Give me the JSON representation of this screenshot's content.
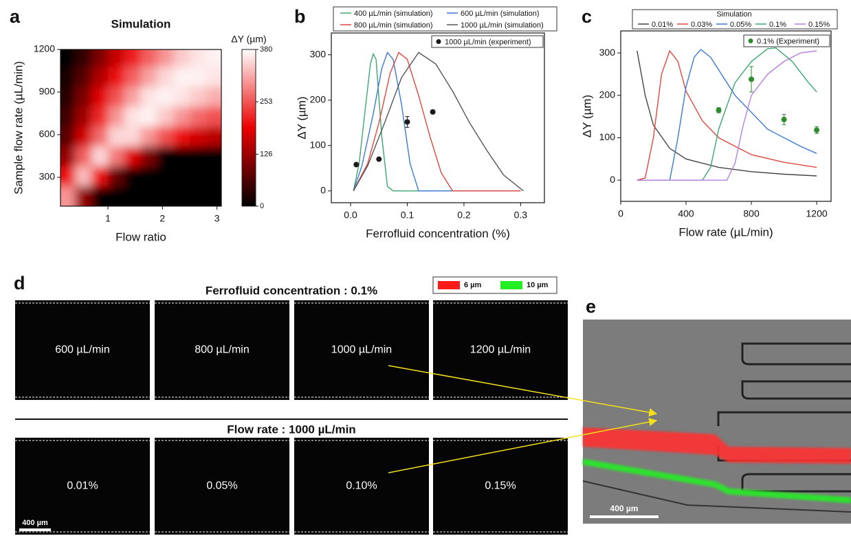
{
  "chart_data": [
    {
      "type": "heatmap",
      "title": "Simulation",
      "xlabel": "Flow ratio",
      "ylabel": "Sample flow rate (µL/min)",
      "colorbar_label": "ΔY (µm)",
      "colorbar_lim": [
        0,
        380
      ],
      "colorbar_ticks": [
        0,
        126,
        253,
        380
      ],
      "xlim": [
        0.13,
        3.08
      ],
      "ylim": [
        97,
        1200
      ],
      "xticks": [
        1,
        2,
        3
      ],
      "yticks": [
        300,
        600,
        900,
        1200
      ],
      "x": [
        0.25,
        0.55,
        0.85,
        1.15,
        1.45,
        1.75,
        2.05,
        2.35,
        2.65,
        2.95
      ],
      "y": [
        170,
        310,
        450,
        590,
        730,
        870,
        1010,
        1150
      ],
      "z": [
        [
          300,
          120,
          0,
          0,
          0,
          0,
          0,
          0,
          0,
          0
        ],
        [
          200,
          330,
          200,
          80,
          0,
          0,
          0,
          0,
          0,
          0
        ],
        [
          120,
          260,
          350,
          280,
          180,
          100,
          0,
          0,
          0,
          0
        ],
        [
          70,
          170,
          270,
          350,
          350,
          300,
          250,
          200,
          170,
          150
        ],
        [
          50,
          130,
          220,
          300,
          360,
          370,
          340,
          300,
          270,
          250
        ],
        [
          30,
          100,
          180,
          250,
          310,
          360,
          370,
          360,
          340,
          320
        ],
        [
          15,
          70,
          140,
          200,
          260,
          310,
          350,
          370,
          370,
          360
        ],
        [
          5,
          40,
          100,
          160,
          210,
          260,
          300,
          340,
          360,
          370
        ]
      ]
    },
    {
      "type": "line",
      "xlabel": "Ferrofluid concentration (%)",
      "ylabel": "ΔY (µm)",
      "xlim": [
        -0.034,
        0.342
      ],
      "ylim": [
        -26,
        348
      ],
      "xticks": [
        {
          "value": 0,
          "label": "0.0"
        },
        0.1,
        0.2,
        0.3
      ],
      "yticks": [
        0,
        100,
        200,
        300
      ],
      "series": [
        {
          "name": "400 µL/min (simulation)",
          "color": "#3aa76d",
          "x": [
            0.005,
            0.015,
            0.025,
            0.035,
            0.04,
            0.045,
            0.055,
            0.065,
            0.075,
            0.3
          ],
          "values": [
            0,
            60,
            170,
            280,
            302,
            290,
            120,
            10,
            0,
            0
          ]
        },
        {
          "name": "600 µL/min (simulation)",
          "color": "#3a78d8",
          "x": [
            0.005,
            0.02,
            0.04,
            0.055,
            0.065,
            0.075,
            0.09,
            0.105,
            0.12,
            0.3
          ],
          "values": [
            0,
            55,
            170,
            270,
            305,
            290,
            190,
            60,
            0,
            0
          ]
        },
        {
          "name": "800 µL/min (simulation)",
          "color": "#e0463e",
          "x": [
            0.005,
            0.03,
            0.05,
            0.07,
            0.085,
            0.1,
            0.12,
            0.14,
            0.16,
            0.18,
            0.3
          ],
          "values": [
            0,
            60,
            150,
            260,
            305,
            290,
            210,
            120,
            40,
            0,
            0
          ]
        },
        {
          "name": "1000 µL/min (simulation)",
          "color": "#555555",
          "x": [
            0.005,
            0.03,
            0.06,
            0.09,
            0.12,
            0.15,
            0.18,
            0.21,
            0.24,
            0.27,
            0.305
          ],
          "values": [
            0,
            55,
            150,
            250,
            305,
            280,
            220,
            150,
            90,
            35,
            0
          ]
        },
        {
          "name": "1000 µL/min (experiment)",
          "color": "#1a1a1a",
          "mode": "markers",
          "x": [
            0.01,
            0.05,
            0.1,
            0.145
          ],
          "values": [
            58,
            70,
            152,
            174
          ],
          "errors": [
            2,
            2,
            12,
            4
          ]
        }
      ]
    },
    {
      "type": "line",
      "xlabel": "Flow rate (µL/min)",
      "ylabel": "ΔY (µm)",
      "legend_title": "Simulation",
      "xlim": [
        0,
        1288
      ],
      "ylim": [
        -50,
        352
      ],
      "xticks": [
        0,
        400,
        800,
        1200
      ],
      "yticks": [
        0,
        100,
        200,
        300
      ],
      "series": [
        {
          "name": "0.01%",
          "color": "#444444",
          "x": [
            100,
            150,
            200,
            300,
            400,
            600,
            800,
            1000,
            1200
          ],
          "values": [
            305,
            200,
            130,
            75,
            50,
            30,
            20,
            14,
            10
          ]
        },
        {
          "name": "0.03%",
          "color": "#e0463e",
          "x": [
            100,
            150,
            200,
            250,
            300,
            350,
            400,
            500,
            600,
            800,
            1000,
            1200
          ],
          "values": [
            0,
            5,
            100,
            250,
            305,
            280,
            210,
            140,
            100,
            60,
            42,
            30
          ]
        },
        {
          "name": "0.05%",
          "color": "#3a78d8",
          "x": [
            100,
            300,
            350,
            400,
            450,
            490,
            550,
            700,
            900,
            1100,
            1200
          ],
          "values": [
            0,
            0,
            100,
            220,
            290,
            308,
            290,
            200,
            120,
            80,
            63
          ]
        },
        {
          "name": "0.1%",
          "color": "#3aa76d",
          "x": [
            100,
            500,
            550,
            600,
            700,
            800,
            900,
            950,
            1050,
            1150,
            1200
          ],
          "values": [
            0,
            0,
            30,
            120,
            230,
            280,
            310,
            312,
            280,
            230,
            208
          ]
        },
        {
          "name": "0.15%",
          "color": "#b77ee0",
          "x": [
            100,
            650,
            700,
            750,
            800,
            900,
            1000,
            1100,
            1200
          ],
          "values": [
            0,
            0,
            40,
            130,
            200,
            250,
            280,
            300,
            305
          ]
        },
        {
          "name": "0.1% (Experiment)",
          "color": "#2e8b2e",
          "mode": "markers",
          "x": [
            600,
            800,
            1000,
            1200
          ],
          "values": [
            165,
            238,
            143,
            118
          ],
          "errors": [
            6,
            30,
            12,
            8
          ]
        }
      ]
    }
  ],
  "figure": {
    "panel_labels": [
      "a",
      "b",
      "c",
      "d",
      "e"
    ],
    "d": {
      "title_top": "Ferrofluid concentration : 0.1%",
      "legend": [
        "6 µm",
        "10 µm"
      ],
      "top_labels": [
        "600 µL/min",
        "800 µL/min",
        "1000 µL/min",
        "1200 µL/min"
      ],
      "title_bottom": "Flow rate : 1000 µL/min",
      "bottom_labels": [
        "0.01%",
        "0.05%",
        "0.10%",
        "0.15%"
      ],
      "scale_bar": "400 µm"
    },
    "e": {
      "scale_bar": "400 µm"
    }
  }
}
